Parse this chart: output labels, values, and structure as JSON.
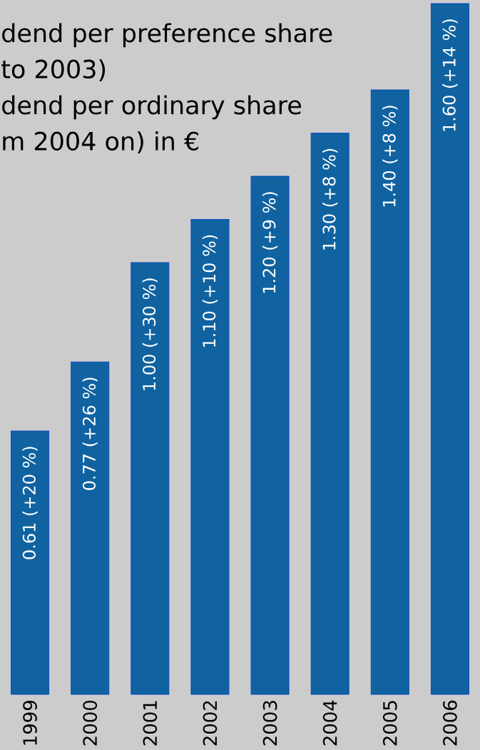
{
  "chart_data": {
    "type": "bar",
    "title": "dend per preference share to 2003)",
    "subtitle": "dend per ordinary share m 2004 on) in €",
    "categories": [
      "1999",
      "2000",
      "2001",
      "2002",
      "2003",
      "2004",
      "2005",
      "2006"
    ],
    "values": [
      0.61,
      0.77,
      1.0,
      1.1,
      1.2,
      1.3,
      1.4,
      1.6
    ],
    "color": "#1063a0",
    "ylim": [
      0,
      1.6
    ],
    "value_labels": [
      "0.61 (+20 %)",
      "0.77 (+26 %)",
      "1.00 (+30 %)",
      "1.10 (+10 %)",
      "1.20 (+9 %)",
      "1.30 (+8 %)",
      "1.40 (+8 %)",
      "1.60 (+14 %)"
    ]
  }
}
